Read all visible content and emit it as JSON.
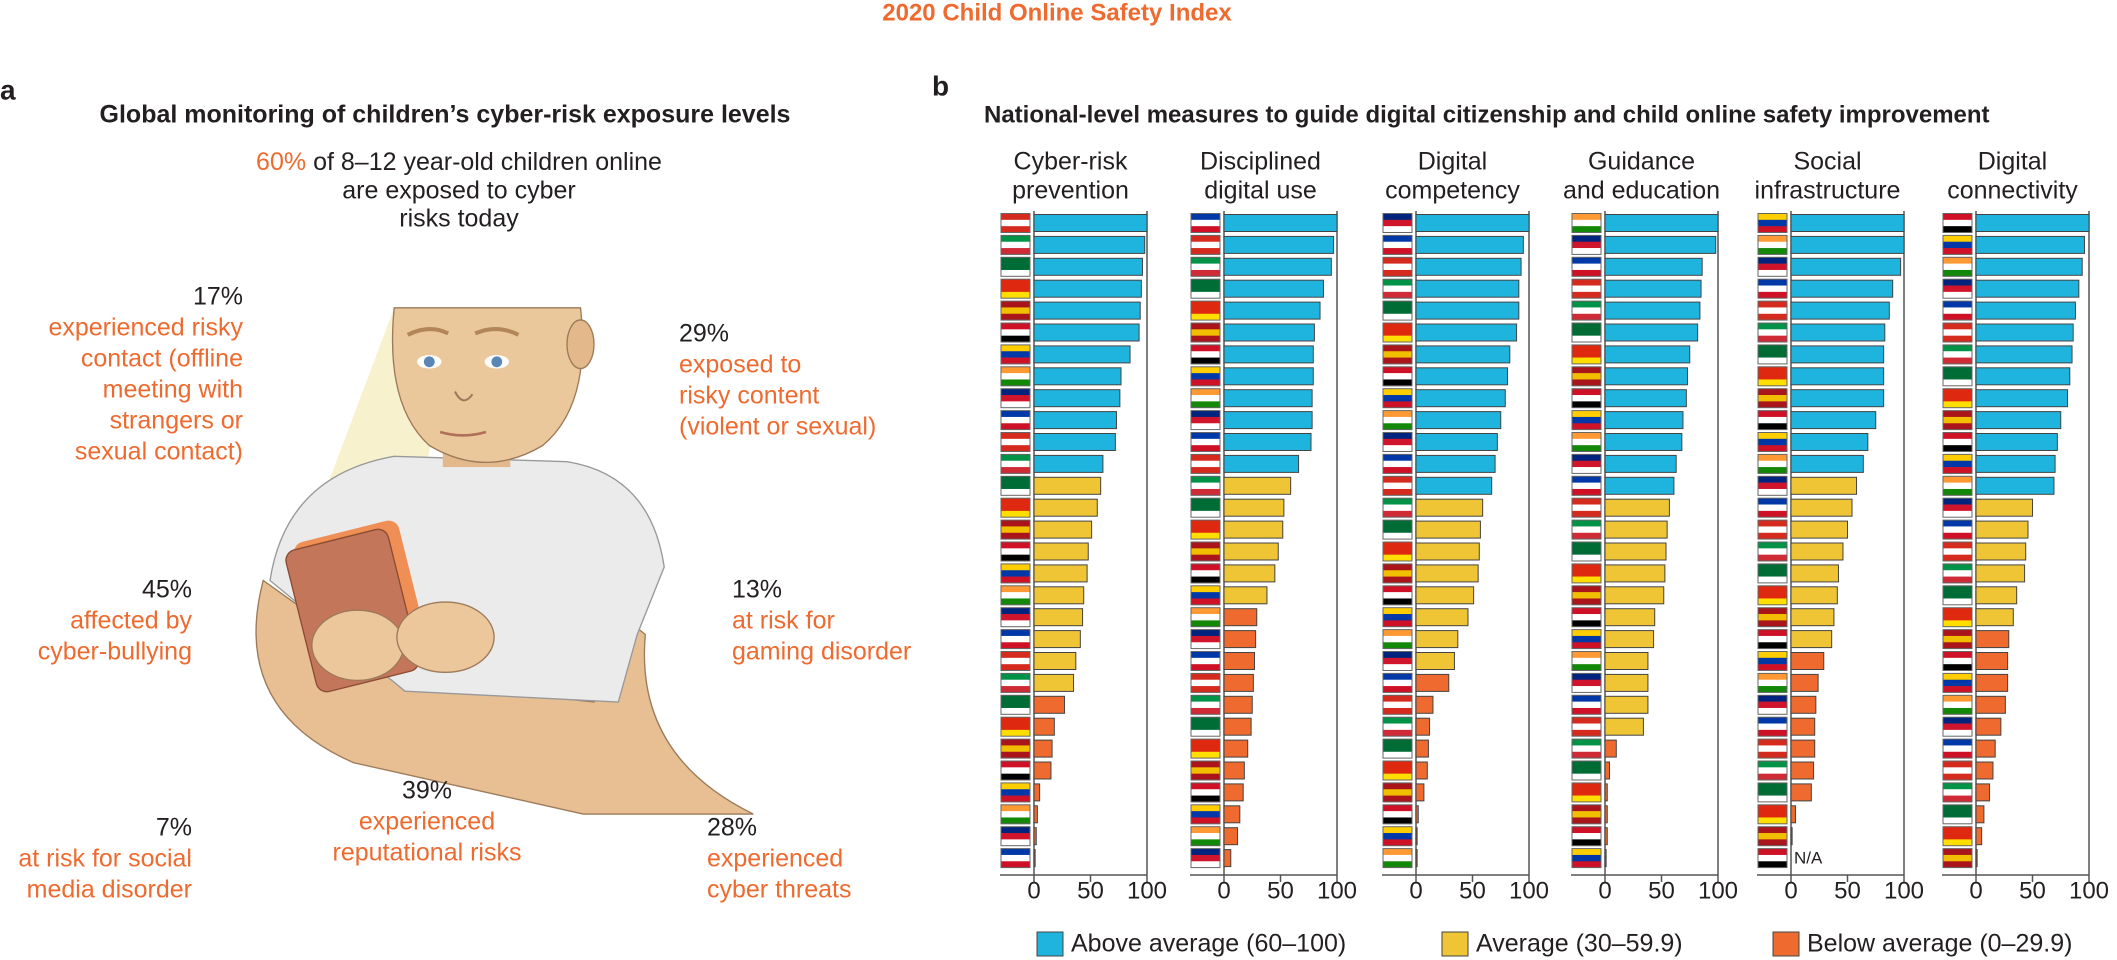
{
  "title": "2020 Child Online Safety Index",
  "panel_a": {
    "label": "a",
    "heading": "Global monitoring of children’s cyber-risk exposure levels",
    "highlight": "60%",
    "lines": [
      "of 8–12 year-old children online",
      "are exposed to cyber",
      "risks today"
    ],
    "stats": [
      {
        "value": "17%",
        "lines": [
          "experienced risky",
          "contact (offline",
          "meeting with",
          "strangers or",
          "sexual contact)"
        ]
      },
      {
        "value": "29%",
        "lines": [
          "exposed to",
          "risky content",
          "(violent or sexual)"
        ]
      },
      {
        "value": "45%",
        "lines": [
          "affected by",
          "cyber-bullying"
        ]
      },
      {
        "value": "13%",
        "lines": [
          "at risk for",
          "gaming disorder"
        ]
      },
      {
        "value": "39%",
        "lines": [
          "experienced",
          "reputational risks"
        ]
      },
      {
        "value": "7%",
        "lines": [
          "at risk for social",
          "media disorder"
        ]
      },
      {
        "value": "28%",
        "lines": [
          "experienced",
          "cyber threats"
        ]
      }
    ]
  },
  "panel_b": {
    "label": "b",
    "heading": "National-level measures to guide digital citizenship and child online safety improvement",
    "legend": [
      {
        "label": "Above average (60–100)",
        "color": "#1fb4de",
        "min": 60
      },
      {
        "label": "Average (30–59.9)",
        "color": "#efc535",
        "min": 30
      },
      {
        "label": "Below average (0–29.9)",
        "color": "#ee6a2e",
        "min": 0
      }
    ]
  },
  "chart_data": [
    {
      "type": "bar",
      "title": [
        "Cyber-risk",
        "prevention"
      ],
      "xlim": [
        0,
        100
      ],
      "xticks": [
        0,
        50,
        100
      ],
      "values": [
        100,
        98,
        96,
        95,
        94,
        93,
        85,
        77,
        76,
        73,
        72,
        61,
        59,
        56,
        51,
        48,
        47,
        44,
        43,
        41,
        37,
        35,
        27,
        18,
        16,
        15,
        5,
        3,
        2,
        1
      ]
    },
    {
      "type": "bar",
      "title": [
        "Disciplined",
        "digital use"
      ],
      "xlim": [
        0,
        100
      ],
      "xticks": [
        0,
        50,
        100
      ],
      "values": [
        100,
        97,
        95,
        88,
        85,
        80,
        79,
        79,
        78,
        78,
        77,
        66,
        59,
        53,
        52,
        48,
        45,
        38,
        29,
        28,
        27,
        26,
        25,
        24,
        21,
        18,
        17,
        14,
        12,
        6
      ]
    },
    {
      "type": "bar",
      "title": [
        "Digital",
        "competency"
      ],
      "xlim": [
        0,
        100
      ],
      "xticks": [
        0,
        50,
        100
      ],
      "values": [
        100,
        95,
        93,
        91,
        91,
        89,
        83,
        81,
        79,
        75,
        72,
        70,
        67,
        59,
        57,
        56,
        55,
        51,
        46,
        37,
        34,
        29,
        15,
        12,
        11,
        10,
        7,
        2,
        1,
        1
      ]
    },
    {
      "type": "bar",
      "title": [
        "Guidance",
        "and education"
      ],
      "xlim": [
        0,
        100
      ],
      "xticks": [
        0,
        50,
        100
      ],
      "values": [
        100,
        98,
        86,
        85,
        84,
        82,
        75,
        73,
        72,
        69,
        68,
        63,
        61,
        57,
        55,
        54,
        53,
        52,
        44,
        43,
        38,
        38,
        38,
        34,
        10,
        4,
        2,
        2,
        2,
        1
      ]
    },
    {
      "type": "bar",
      "title": [
        "Social",
        "infrastructure"
      ],
      "xlim": [
        0,
        100
      ],
      "xticks": [
        0,
        50,
        100
      ],
      "values": [
        100,
        100,
        97,
        90,
        87,
        83,
        82,
        82,
        82,
        75,
        68,
        64,
        58,
        54,
        50,
        46,
        42,
        41,
        38,
        36,
        29,
        24,
        22,
        21,
        21,
        20,
        18,
        4,
        1,
        null
      ],
      "value_labels": [
        null,
        null,
        null,
        null,
        null,
        null,
        null,
        null,
        null,
        null,
        null,
        null,
        null,
        null,
        null,
        null,
        null,
        null,
        null,
        null,
        null,
        null,
        null,
        null,
        null,
        null,
        null,
        null,
        null,
        "N/A"
      ]
    },
    {
      "type": "bar",
      "title": [
        "Digital",
        "connectivity"
      ],
      "xlim": [
        0,
        100
      ],
      "xticks": [
        0,
        50,
        100
      ],
      "values": [
        100,
        96,
        94,
        91,
        88,
        86,
        85,
        83,
        81,
        75,
        72,
        70,
        69,
        50,
        46,
        44,
        43,
        36,
        33,
        29,
        28,
        28,
        26,
        22,
        17,
        15,
        12,
        7,
        5,
        1
      ]
    }
  ]
}
